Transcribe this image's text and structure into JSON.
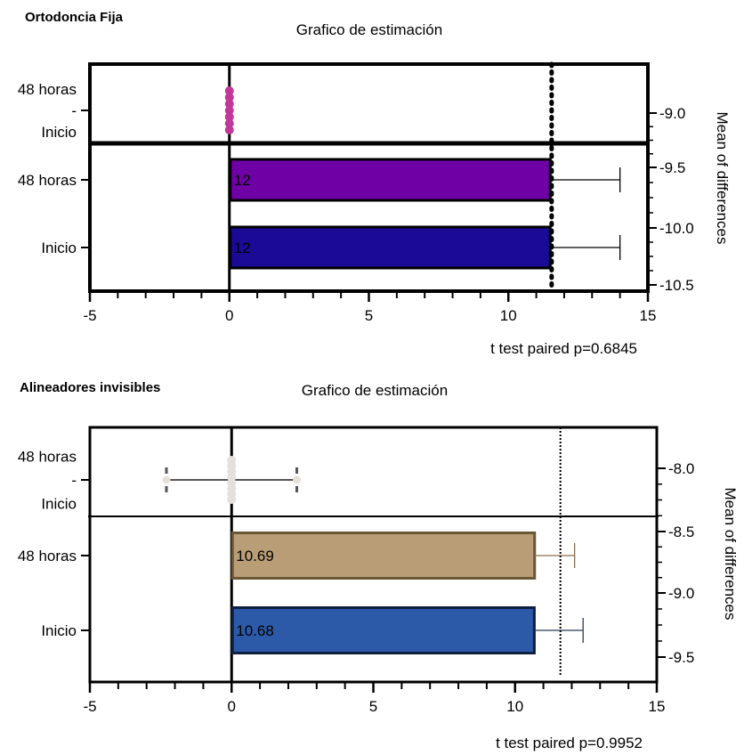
{
  "chart_data": [
    {
      "type": "estimation-bar",
      "heading": "Ortodoncia Fija",
      "title": "Grafico de estimación",
      "xlim": [
        -5,
        15
      ],
      "x_ticks": [
        "-5",
        "0",
        "5",
        "10",
        "15"
      ],
      "categories": [
        {
          "label_lines": [
            "48 horas",
            "-",
            "Inicio"
          ],
          "kind": "difference"
        },
        {
          "label_lines": [
            "48 horas"
          ],
          "kind": "bar"
        },
        {
          "label_lines": [
            "Inicio"
          ],
          "kind": "bar"
        }
      ],
      "bars": [
        {
          "category": "48 horas",
          "value": 11.5,
          "error_high": 14.0,
          "label": "12",
          "fill": "#6e00a6"
        },
        {
          "category": "Inicio",
          "value": 11.5,
          "error_high": 14.0,
          "label": "12",
          "fill": "#1a0a96"
        }
      ],
      "differences": {
        "values": [
          0,
          0,
          0,
          0,
          0,
          0,
          0
        ],
        "color": "#c0399a"
      },
      "mean_line": 11.55,
      "right_axis": {
        "label": "Mean of differences",
        "ticks": [
          "-9.0",
          "-9.5",
          "-10.0",
          "-10.5"
        ]
      },
      "note": "t test paired p=0.6845"
    },
    {
      "type": "estimation-bar",
      "heading": "Alineadores invisibles",
      "title": "Grafico de estimación",
      "xlim": [
        -5,
        15
      ],
      "x_ticks": [
        "-5",
        "0",
        "5",
        "10",
        "15"
      ],
      "categories": [
        {
          "label_lines": [
            "48 horas",
            "-",
            "Inicio"
          ],
          "kind": "difference"
        },
        {
          "label_lines": [
            "48 horas"
          ],
          "kind": "bar"
        },
        {
          "label_lines": [
            "Inicio"
          ],
          "kind": "bar"
        }
      ],
      "bars": [
        {
          "category": "48 horas",
          "value": 10.69,
          "error_high": 12.1,
          "label": "10.69",
          "fill": "#b89d76"
        },
        {
          "category": "Inicio",
          "value": 10.68,
          "error_high": 12.4,
          "label": "10.68",
          "fill": "#2c5aa8"
        }
      ],
      "differences": {
        "values": [
          0,
          0,
          0,
          0,
          0,
          0,
          0,
          0
        ],
        "range": [
          -2.3,
          2.3
        ],
        "color": "#e6e1d8"
      },
      "mean_line": 11.6,
      "right_axis": {
        "label": "Mean of differences",
        "ticks": [
          "-8.0",
          "-8.5",
          "-9.0",
          "-9.5"
        ]
      },
      "note": "t test paired p=0.9952"
    }
  ]
}
